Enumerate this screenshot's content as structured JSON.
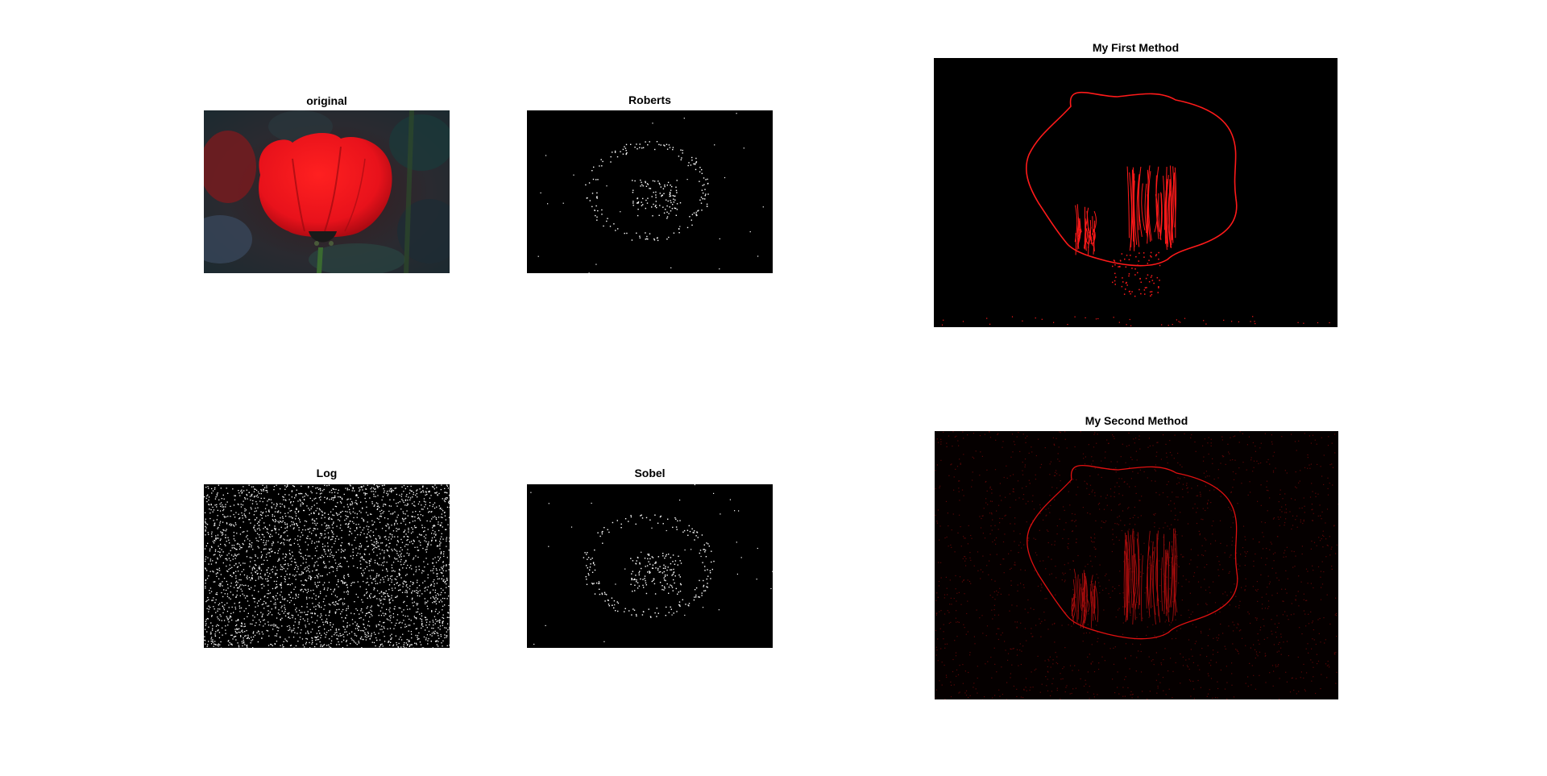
{
  "figure": {
    "panels": {
      "original": {
        "title": "original"
      },
      "roberts": {
        "title": "Roberts"
      },
      "log": {
        "title": "Log"
      },
      "sobel": {
        "title": "Sobel"
      },
      "first": {
        "title": "My First Method"
      },
      "second": {
        "title": "My Second Method"
      }
    }
  },
  "colors": {
    "background": "#ffffff",
    "edge_white": "#ffffff",
    "edge_red": "#ff1a1a",
    "flower_red": "#e8121b"
  }
}
